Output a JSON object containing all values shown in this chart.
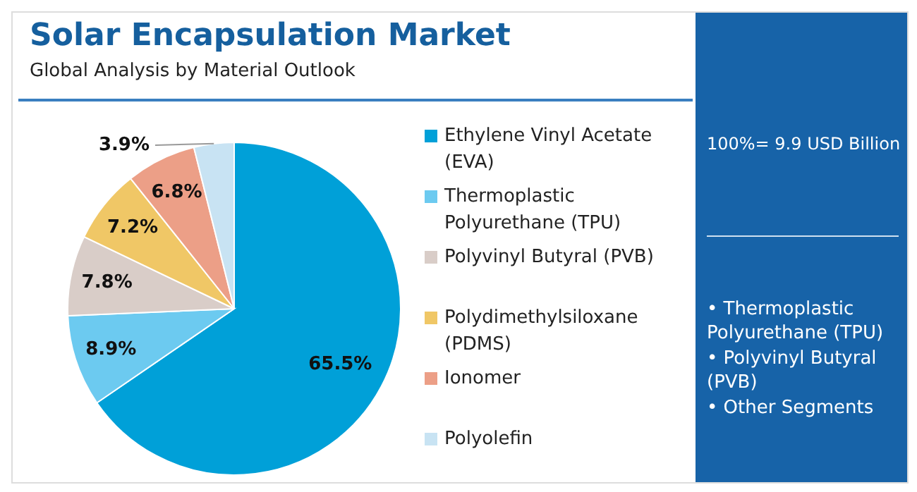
{
  "chart_data": {
    "type": "pie",
    "title": "Solar Encapsulation Market",
    "subtitle": "Global Analysis by Material Outlook",
    "categories": [
      "Ethylene Vinyl Acetate (EVA)",
      "Thermoplastic Polyurethane (TPU)",
      "Polyvinyl Butyral (PVB)",
      "Polydimethylsiloxane (PDMS)",
      "Ionomer",
      "Polyolefin"
    ],
    "values": [
      65.5,
      8.9,
      7.8,
      7.2,
      6.8,
      3.9
    ],
    "colors": [
      "#00a0d8",
      "#6ccaf0",
      "#d9cdc8",
      "#f0c766",
      "#ec9f87",
      "#c8e3f3"
    ],
    "value_labels": [
      "65.5%",
      "8.9%",
      "7.8%",
      "7.2%",
      "6.8%",
      "3.9%"
    ],
    "legend": "right",
    "annotations": [
      "100%= 9.9 USD Billion",
      "• Thermoplastic Polyurethane (TPU)",
      "• Polyvinyl Butyral (PVB)",
      "• Other Segments"
    ]
  }
}
